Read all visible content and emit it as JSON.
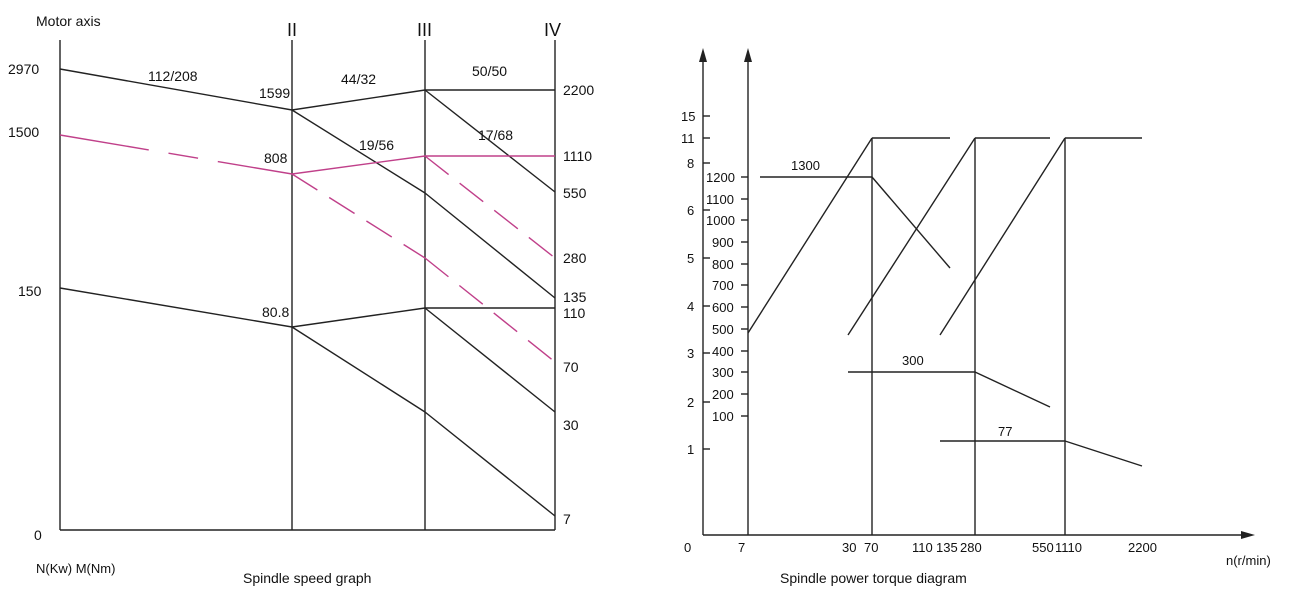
{
  "speed_graph": {
    "title": "Spindle speed graph",
    "motor_axis_label": "Motor axis",
    "unit_label": "N(Kw)  M(Nm)",
    "origin_label": "0",
    "axis_labels": [
      "II",
      "III",
      "IV"
    ],
    "left_values": [
      "2970",
      "1500",
      "150"
    ],
    "shaft2_values": [
      "1599",
      "808",
      "80.8"
    ],
    "ratios": [
      "112/208",
      "44/32",
      "50/50",
      "19/56",
      "17/68"
    ],
    "output_speeds": [
      "2200",
      "1110",
      "550",
      "280",
      "135",
      "110",
      "70",
      "30",
      "7"
    ],
    "line_color": "#222222",
    "highlight_color": "#c0408a"
  },
  "torque_diagram": {
    "title": "Spindle power torque diagram",
    "x_axis_label": "n(r/min)",
    "x_ticks": [
      "0",
      "7",
      "30",
      "70",
      "110",
      "135",
      "280",
      "550",
      "1110",
      "2200"
    ],
    "power_ticks": [
      "15",
      "11",
      "8",
      "6",
      "5",
      "4",
      "3",
      "2",
      "1"
    ],
    "torque_ticks": [
      "1200",
      "1100",
      "1000",
      "900",
      "800",
      "700",
      "600",
      "500",
      "400",
      "300",
      "200",
      "100"
    ],
    "torque_labels": [
      "1300",
      "300",
      "77"
    ],
    "line_color": "#222222"
  }
}
